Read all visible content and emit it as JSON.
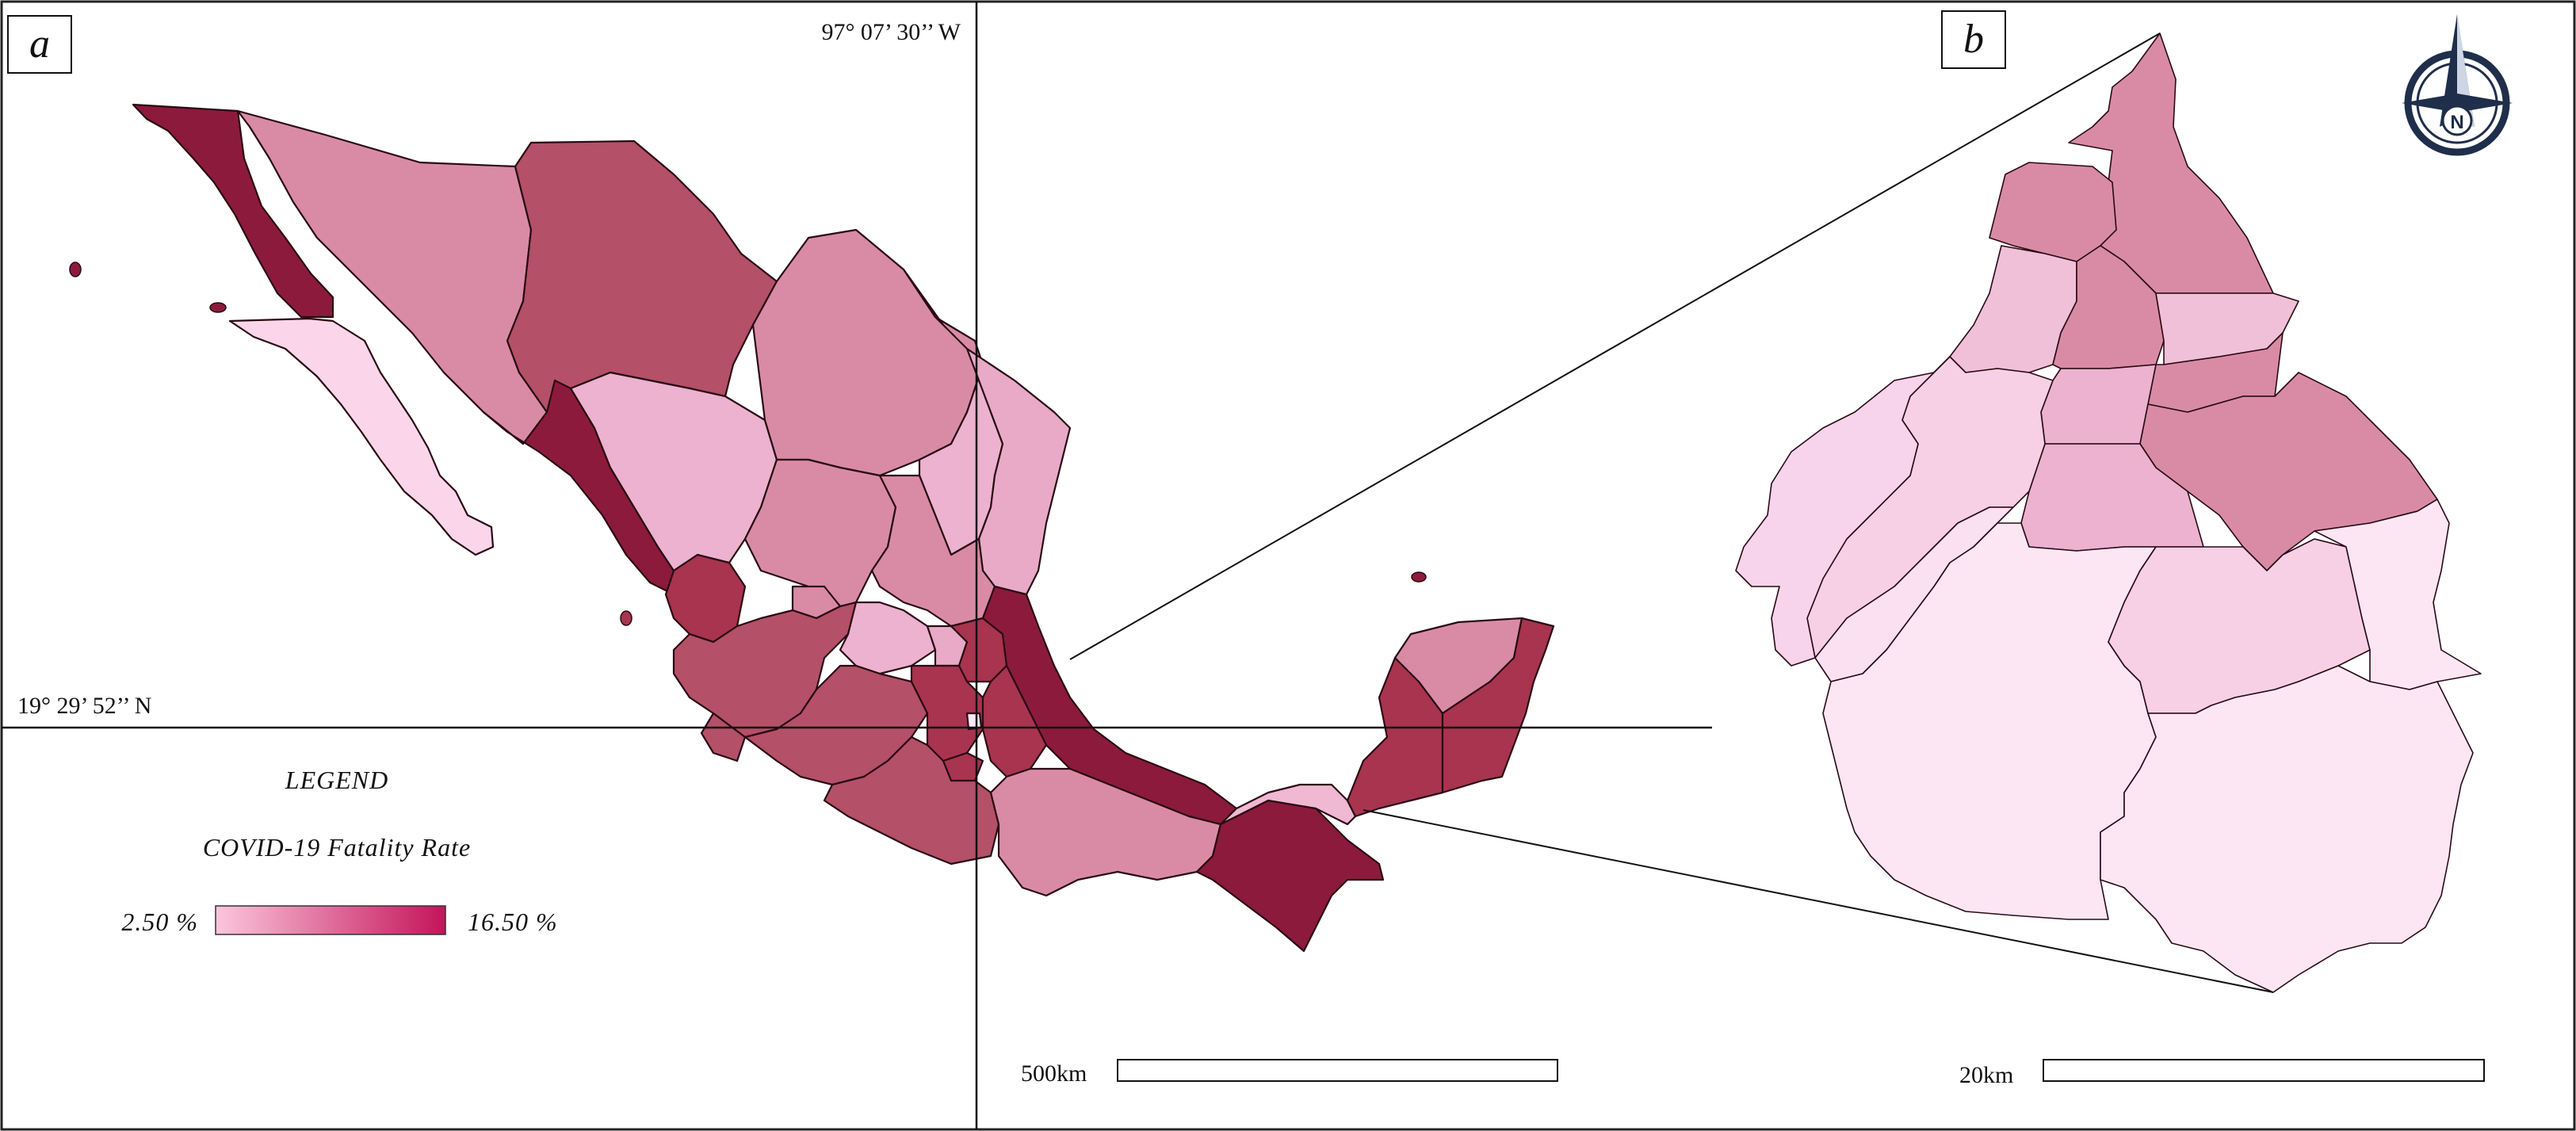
{
  "panels": {
    "a": {
      "label": "a"
    },
    "b": {
      "label": "b"
    }
  },
  "coordinates": {
    "longitude": "97° 07’ 30’’ W",
    "latitude": "19° 29’ 52’’ N"
  },
  "legend": {
    "title": "LEGEND",
    "subtitle": "COVID-19 Fatality Rate",
    "min_label": "2.50 %",
    "max_label": "16.50 %",
    "min_value": 2.5,
    "max_value": 16.5,
    "color_min": "#fbc6dc",
    "color_max": "#c4145a"
  },
  "scale_bars": {
    "main": "500km",
    "inset": "20km"
  },
  "compass": {
    "letter": "N",
    "icon": "north-arrow-icon"
  },
  "colors": {
    "very_dark": "#8c1a3c",
    "dark": "#a8344f",
    "medium_dark": "#b45068",
    "medium": "#d98ba6",
    "medium_light": "#e8aac6",
    "light": "#f2c8df",
    "very_light": "#fbe0f1",
    "lightest": "#fdeaf6"
  }
}
